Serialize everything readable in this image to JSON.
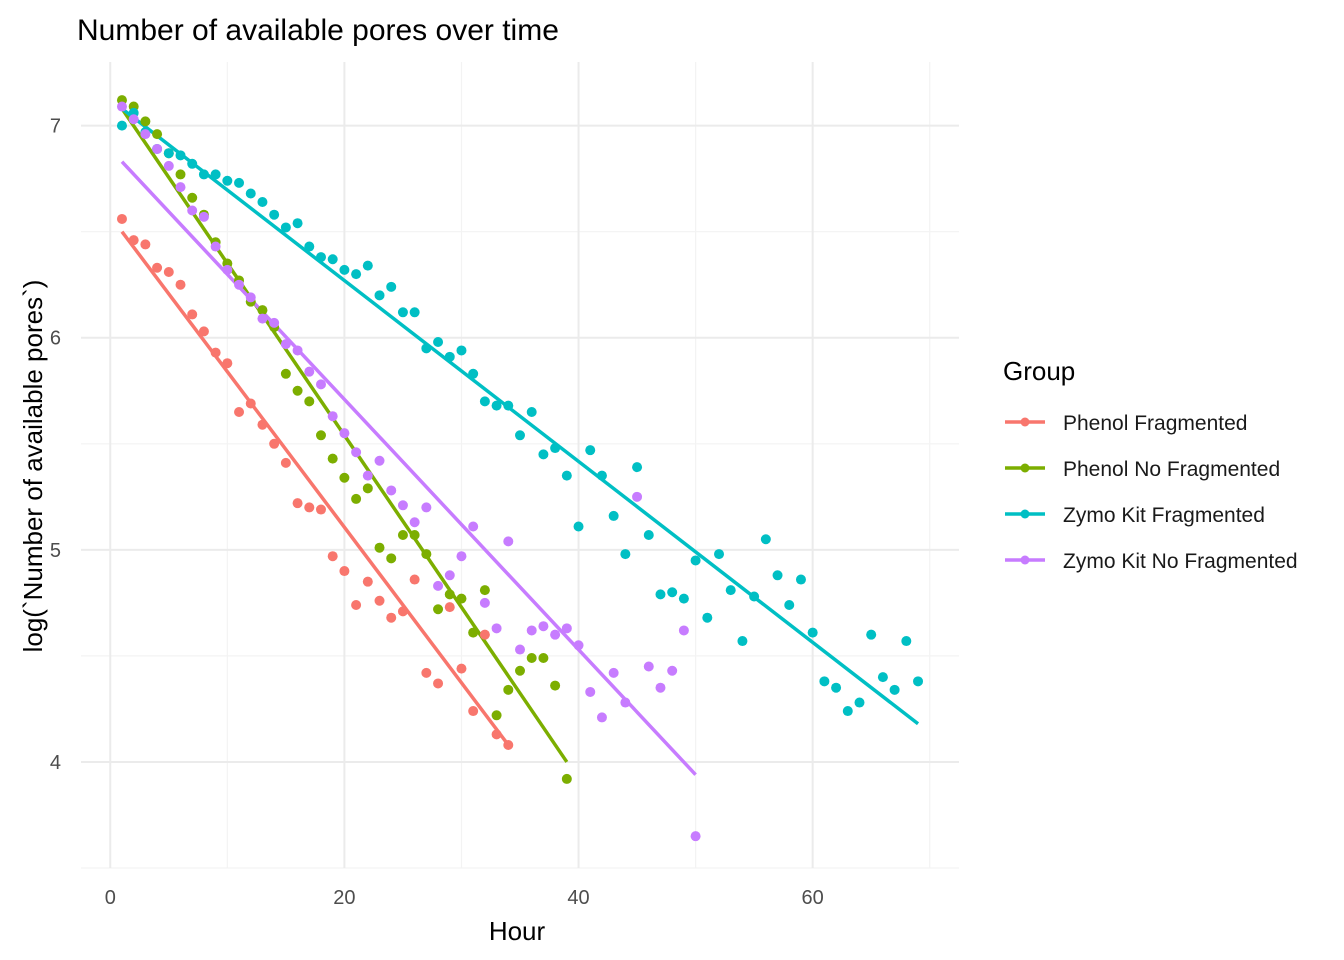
{
  "chart_data": {
    "type": "scatter",
    "title": "Number of available pores over time",
    "xlabel": "Hour",
    "ylabel": "log(`Number of available pores`)",
    "xlim": [
      -2.5,
      72.5
    ],
    "ylim": [
      3.5,
      7.3
    ],
    "x_ticks": [
      0,
      20,
      40,
      60
    ],
    "x_minor_ticks": [
      10,
      30,
      50,
      70
    ],
    "y_ticks": [
      4,
      5,
      6,
      7
    ],
    "y_minor_ticks": [
      3.5,
      4.5,
      5.5,
      6.5
    ],
    "grid": true,
    "legend": {
      "title": "Group",
      "position": "right"
    },
    "series": [
      {
        "name": "Phenol Fragmented",
        "color": "#F8766D",
        "fit": [
          [
            1,
            6.5
          ],
          [
            34,
            4.08
          ]
        ],
        "points": [
          [
            1,
            6.56
          ],
          [
            2,
            6.46
          ],
          [
            3,
            6.44
          ],
          [
            4,
            6.33
          ],
          [
            5,
            6.31
          ],
          [
            6,
            6.25
          ],
          [
            7,
            6.11
          ],
          [
            8,
            6.03
          ],
          [
            9,
            5.93
          ],
          [
            10,
            5.88
          ],
          [
            11,
            5.65
          ],
          [
            12,
            5.69
          ],
          [
            13,
            5.59
          ],
          [
            14,
            5.5
          ],
          [
            15,
            5.41
          ],
          [
            16,
            5.22
          ],
          [
            17,
            5.2
          ],
          [
            18,
            5.19
          ],
          [
            19,
            4.97
          ],
          [
            20,
            4.9
          ],
          [
            21,
            4.74
          ],
          [
            22,
            4.85
          ],
          [
            23,
            4.76
          ],
          [
            24,
            4.68
          ],
          [
            25,
            4.71
          ],
          [
            26,
            4.86
          ],
          [
            27,
            4.42
          ],
          [
            28,
            4.37
          ],
          [
            29,
            4.73
          ],
          [
            30,
            4.44
          ],
          [
            31,
            4.24
          ],
          [
            32,
            4.6
          ],
          [
            33,
            4.13
          ],
          [
            34,
            4.08
          ]
        ]
      },
      {
        "name": "Phenol No Fragmented",
        "color": "#7CAE00",
        "fit": [
          [
            1,
            7.08
          ],
          [
            39,
            4.0
          ]
        ],
        "points": [
          [
            1,
            7.12
          ],
          [
            2,
            7.09
          ],
          [
            3,
            7.02
          ],
          [
            4,
            6.96
          ],
          [
            5,
            6.87
          ],
          [
            6,
            6.77
          ],
          [
            7,
            6.66
          ],
          [
            8,
            6.58
          ],
          [
            9,
            6.45
          ],
          [
            10,
            6.35
          ],
          [
            11,
            6.27
          ],
          [
            12,
            6.17
          ],
          [
            13,
            6.13
          ],
          [
            14,
            6.05
          ],
          [
            15,
            5.83
          ],
          [
            16,
            5.75
          ],
          [
            17,
            5.7
          ],
          [
            18,
            5.54
          ],
          [
            19,
            5.43
          ],
          [
            20,
            5.34
          ],
          [
            21,
            5.24
          ],
          [
            22,
            5.29
          ],
          [
            23,
            5.01
          ],
          [
            24,
            4.96
          ],
          [
            25,
            5.07
          ],
          [
            26,
            5.07
          ],
          [
            27,
            4.98
          ],
          [
            28,
            4.72
          ],
          [
            29,
            4.79
          ],
          [
            30,
            4.77
          ],
          [
            31,
            4.61
          ],
          [
            32,
            4.81
          ],
          [
            33,
            4.22
          ],
          [
            34,
            4.34
          ],
          [
            35,
            4.43
          ],
          [
            36,
            4.49
          ],
          [
            37,
            4.49
          ],
          [
            38,
            4.36
          ],
          [
            39,
            3.92
          ]
        ]
      },
      {
        "name": "Zymo Kit Fragmented",
        "color": "#00BFC4",
        "fit": [
          [
            1,
            7.08
          ],
          [
            69,
            4.18
          ]
        ],
        "points": [
          [
            1,
            7.0
          ],
          [
            2,
            7.06
          ],
          [
            3,
            6.97
          ],
          [
            4,
            6.89
          ],
          [
            5,
            6.87
          ],
          [
            6,
            6.86
          ],
          [
            7,
            6.82
          ],
          [
            8,
            6.77
          ],
          [
            9,
            6.77
          ],
          [
            10,
            6.74
          ],
          [
            11,
            6.73
          ],
          [
            12,
            6.68
          ],
          [
            13,
            6.64
          ],
          [
            14,
            6.58
          ],
          [
            15,
            6.52
          ],
          [
            16,
            6.54
          ],
          [
            17,
            6.43
          ],
          [
            18,
            6.38
          ],
          [
            19,
            6.37
          ],
          [
            20,
            6.32
          ],
          [
            21,
            6.3
          ],
          [
            22,
            6.34
          ],
          [
            23,
            6.2
          ],
          [
            24,
            6.24
          ],
          [
            25,
            6.12
          ],
          [
            26,
            6.12
          ],
          [
            27,
            5.95
          ],
          [
            28,
            5.98
          ],
          [
            29,
            5.91
          ],
          [
            30,
            5.94
          ],
          [
            31,
            5.83
          ],
          [
            32,
            5.7
          ],
          [
            33,
            5.68
          ],
          [
            34,
            5.68
          ],
          [
            35,
            5.54
          ],
          [
            36,
            5.65
          ],
          [
            37,
            5.45
          ],
          [
            38,
            5.48
          ],
          [
            39,
            5.35
          ],
          [
            40,
            5.11
          ],
          [
            41,
            5.47
          ],
          [
            42,
            5.35
          ],
          [
            43,
            5.16
          ],
          [
            44,
            4.98
          ],
          [
            45,
            5.39
          ],
          [
            46,
            5.07
          ],
          [
            47,
            4.79
          ],
          [
            48,
            4.8
          ],
          [
            49,
            4.77
          ],
          [
            50,
            4.95
          ],
          [
            51,
            4.68
          ],
          [
            52,
            4.98
          ],
          [
            53,
            4.81
          ],
          [
            54,
            4.57
          ],
          [
            55,
            4.78
          ],
          [
            56,
            5.05
          ],
          [
            57,
            4.88
          ],
          [
            58,
            4.74
          ],
          [
            59,
            4.86
          ],
          [
            60,
            4.61
          ],
          [
            61,
            4.38
          ],
          [
            62,
            4.35
          ],
          [
            63,
            4.24
          ],
          [
            64,
            4.28
          ],
          [
            65,
            4.6
          ],
          [
            66,
            4.4
          ],
          [
            67,
            4.34
          ],
          [
            68,
            4.57
          ],
          [
            69,
            4.38
          ]
        ]
      },
      {
        "name": "Zymo Kit No Fragmented",
        "color": "#C77CFF",
        "fit": [
          [
            1,
            6.83
          ],
          [
            50,
            3.94
          ]
        ],
        "points": [
          [
            1,
            7.09
          ],
          [
            2,
            7.03
          ],
          [
            3,
            6.96
          ],
          [
            4,
            6.89
          ],
          [
            5,
            6.81
          ],
          [
            6,
            6.71
          ],
          [
            7,
            6.6
          ],
          [
            8,
            6.57
          ],
          [
            9,
            6.43
          ],
          [
            10,
            6.32
          ],
          [
            11,
            6.25
          ],
          [
            12,
            6.19
          ],
          [
            13,
            6.09
          ],
          [
            14,
            6.07
          ],
          [
            15,
            5.97
          ],
          [
            16,
            5.94
          ],
          [
            17,
            5.84
          ],
          [
            18,
            5.78
          ],
          [
            19,
            5.63
          ],
          [
            20,
            5.55
          ],
          [
            21,
            5.46
          ],
          [
            22,
            5.35
          ],
          [
            23,
            5.42
          ],
          [
            24,
            5.28
          ],
          [
            25,
            5.21
          ],
          [
            26,
            5.13
          ],
          [
            27,
            5.2
          ],
          [
            28,
            4.83
          ],
          [
            29,
            4.88
          ],
          [
            30,
            4.97
          ],
          [
            31,
            5.11
          ],
          [
            32,
            4.75
          ],
          [
            33,
            4.63
          ],
          [
            34,
            5.04
          ],
          [
            35,
            4.53
          ],
          [
            36,
            4.62
          ],
          [
            37,
            4.64
          ],
          [
            38,
            4.6
          ],
          [
            39,
            4.63
          ],
          [
            40,
            4.55
          ],
          [
            41,
            4.33
          ],
          [
            42,
            4.21
          ],
          [
            43,
            4.42
          ],
          [
            44,
            4.28
          ],
          [
            45,
            5.25
          ],
          [
            46,
            4.45
          ],
          [
            47,
            4.35
          ],
          [
            48,
            4.43
          ],
          [
            49,
            4.62
          ],
          [
            50,
            3.65
          ]
        ]
      }
    ]
  }
}
